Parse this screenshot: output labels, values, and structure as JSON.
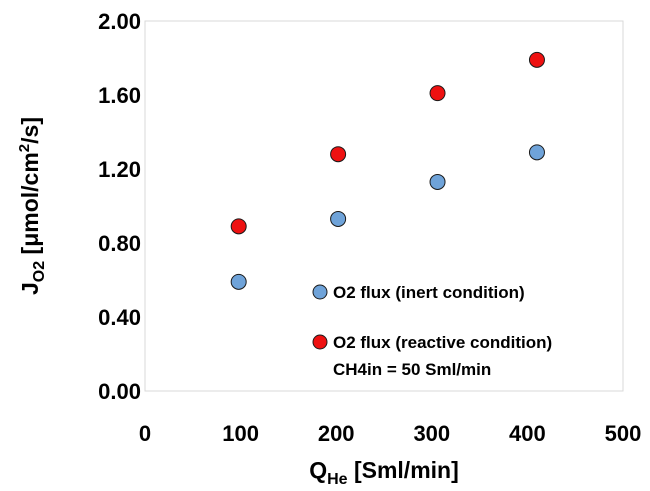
{
  "chart_data": {
    "type": "scatter",
    "title": "",
    "xlabel": {
      "main": "Q",
      "sub": "He",
      "rest": " [Sml/min]"
    },
    "ylabel": {
      "main": "J",
      "sub": "O2",
      "pre": " [μmol/cm",
      "sup": "2",
      "post": "/s]"
    },
    "xlim": [
      0,
      500
    ],
    "ylim": [
      0,
      2.0
    ],
    "xticks": [
      0,
      100,
      200,
      300,
      400,
      500
    ],
    "xtick_labels": [
      "0",
      "100",
      "200",
      "300",
      "400",
      "500"
    ],
    "yticks": [
      0,
      0.4,
      0.8,
      1.2,
      1.6,
      2.0
    ],
    "ytick_labels": [
      "0.00",
      "0.40",
      "0.80",
      "1.20",
      "1.60",
      "2.00"
    ],
    "grid": false,
    "legend_position": "bottom-right",
    "series": [
      {
        "name": "O2 flux (inert condition)",
        "color": "#6fa3d9",
        "x": [
          98,
          202,
          306,
          410
        ],
        "y": [
          0.59,
          0.93,
          1.13,
          1.29
        ]
      },
      {
        "name": "O2 flux (reactive condition)",
        "color": "#ee1111",
        "x": [
          98,
          202,
          306,
          410
        ],
        "y": [
          0.89,
          1.28,
          1.61,
          1.79
        ]
      }
    ],
    "annotation": "CH4in = 50 Sml/min"
  }
}
